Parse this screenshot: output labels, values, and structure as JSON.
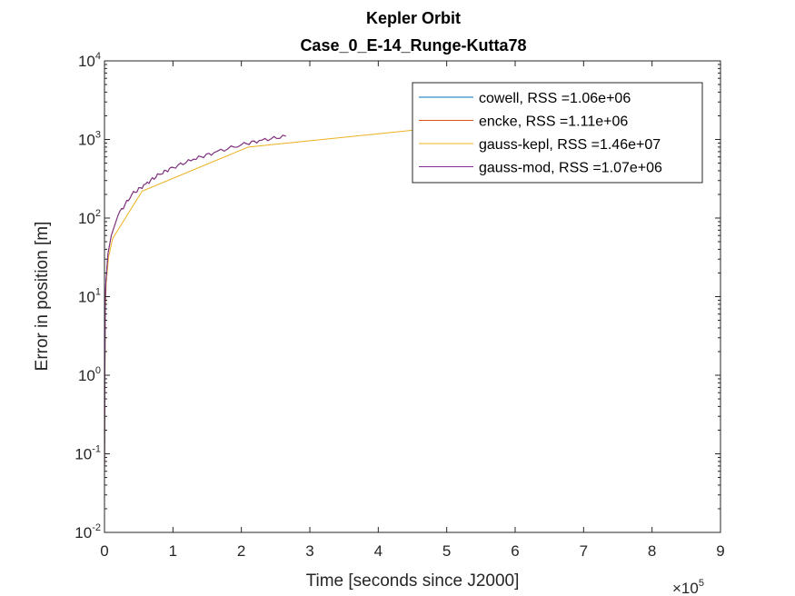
{
  "chart_data": {
    "type": "line",
    "title": "Kepler Orbit",
    "subtitle": "Case_0_E-14_Runge-Kutta78",
    "xlabel": "Time [seconds since J2000]",
    "ylabel": "Error in position [m]",
    "x_scale_label": "×10",
    "x_scale_exponent": "5",
    "x_scale_factor": 100000,
    "xlim": [
      0,
      900000
    ],
    "ylim": [
      0.01,
      10000
    ],
    "yscale": "log",
    "xticks": [
      {
        "value": 0,
        "label": "0"
      },
      {
        "value": 100000,
        "label": "1"
      },
      {
        "value": 200000,
        "label": "2"
      },
      {
        "value": 300000,
        "label": "3"
      },
      {
        "value": 400000,
        "label": "4"
      },
      {
        "value": 500000,
        "label": "5"
      },
      {
        "value": 600000,
        "label": "6"
      },
      {
        "value": 700000,
        "label": "7"
      },
      {
        "value": 800000,
        "label": "8"
      },
      {
        "value": 900000,
        "label": "9"
      }
    ],
    "yticks": [
      {
        "value": 0.01,
        "base": "10",
        "exp": "-2"
      },
      {
        "value": 0.1,
        "base": "10",
        "exp": "-1"
      },
      {
        "value": 1,
        "base": "10",
        "exp": "0"
      },
      {
        "value": 10,
        "base": "10",
        "exp": "1"
      },
      {
        "value": 100,
        "base": "10",
        "exp": "2"
      },
      {
        "value": 1000,
        "base": "10",
        "exp": "3"
      },
      {
        "value": 10000,
        "base": "10",
        "exp": "4"
      }
    ],
    "grid": false,
    "legend_position": "top-right",
    "series": [
      {
        "name": "cowell, RSS =1.06e+06",
        "color": "#0072bd",
        "x": [
          0,
          1000,
          2000,
          5000,
          10000,
          20000,
          40000,
          60000,
          80000,
          100000,
          130000,
          160000,
          200000,
          230000,
          265000
        ],
        "y": [
          0.05,
          8,
          15,
          35,
          60,
          110,
          200,
          270,
          360,
          440,
          560,
          680,
          860,
          980,
          1100
        ]
      },
      {
        "name": "encke, RSS =1.11e+06",
        "color": "#d95319",
        "x": [
          0,
          1000,
          2000,
          5000,
          10000,
          20000,
          40000,
          60000,
          80000,
          100000,
          130000,
          160000,
          200000,
          230000,
          265000
        ],
        "y": [
          0.05,
          8,
          15,
          35,
          60,
          110,
          200,
          270,
          360,
          440,
          560,
          680,
          860,
          980,
          1100
        ]
      },
      {
        "name": "gauss-kepl, RSS =1.46e+07",
        "color": "#edb120",
        "x": [
          0,
          1000,
          2500,
          6000,
          12000,
          55000,
          210000,
          500000
        ],
        "y": [
          0.04,
          6,
          15,
          32,
          55,
          220,
          800,
          1450
        ]
      },
      {
        "name": "gauss-mod, RSS =1.07e+06",
        "color": "#7e2f8e",
        "x": [
          0,
          1000,
          2000,
          5000,
          10000,
          20000,
          40000,
          60000,
          80000,
          100000,
          130000,
          160000,
          200000,
          230000,
          265000
        ],
        "y": [
          0.05,
          8,
          15,
          35,
          60,
          110,
          200,
          270,
          360,
          440,
          560,
          680,
          860,
          980,
          1100
        ]
      }
    ]
  }
}
